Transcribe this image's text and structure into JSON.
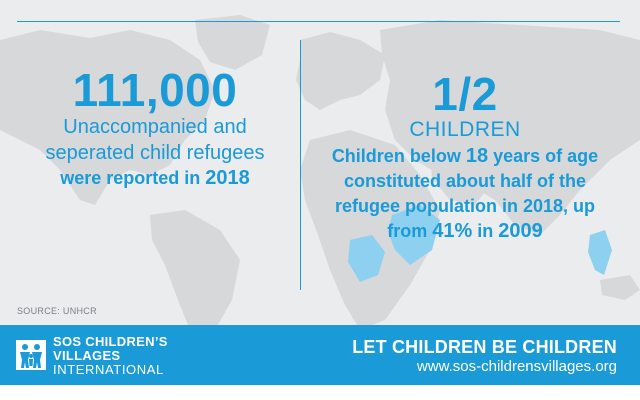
{
  "left_panel": {
    "stat": "111,000",
    "line1": "Unaccompanied and",
    "line2": "seperated child refugees",
    "line3_text": "were reported in",
    "line3_year": "2018"
  },
  "right_panel": {
    "stat": "1/2",
    "label": "CHILDREN",
    "line1_a": "Children below",
    "line1_num": "18",
    "line1_b": "years of age",
    "line2": "constituted about half of the",
    "line3": "refugee population in 2018, up",
    "line4_a": "from",
    "line4_pct": "41%",
    "line4_b": "in",
    "line4_year": "2009"
  },
  "source": "SOURCE: UNHCR",
  "footer": {
    "org_line1": "SOS CHILDREN’S",
    "org_line2": "VILLAGES",
    "org_line3": "INTERNATIONAL",
    "tagline": "LET CHILDREN BE CHILDREN",
    "url": "www.sos-childrensvillages.org"
  },
  "colors": {
    "accent": "#1a9ad6",
    "map_land": "#d6d8da",
    "map_highlight": "#8ed0f0",
    "background": "#ebeced"
  },
  "icons": {
    "logo": "sos-children-figures-logo"
  }
}
